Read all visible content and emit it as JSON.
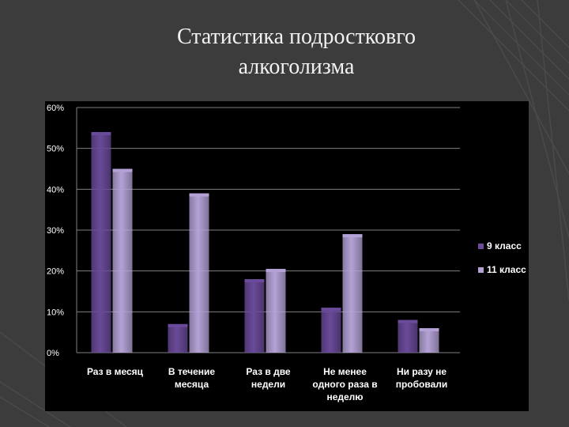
{
  "slide": {
    "title_line1": "Статистика подростковго",
    "title_line2": "алкоголизма"
  },
  "colors": {
    "background": "#3c3c3c",
    "panel": "#000000",
    "grid": "#808080",
    "series_9": "#6a4a9a",
    "series_11": "#b4a2d6"
  },
  "chart_data": {
    "type": "bar",
    "title": "",
    "xlabel": "",
    "ylabel": "",
    "ylim": [
      0,
      0.6
    ],
    "y_ticks": [
      "0%",
      "10%",
      "20%",
      "30%",
      "40%",
      "50%",
      "60%"
    ],
    "grid": true,
    "legend_position": "right",
    "categories": [
      [
        "Раз в месяц"
      ],
      [
        "В течение",
        "месяца"
      ],
      [
        "Раз в две",
        "недели"
      ],
      [
        "Не менее",
        "одного раза в",
        "неделю"
      ],
      [
        "Ни разу не",
        "пробовали"
      ]
    ],
    "series": [
      {
        "name": "9 класс",
        "values": [
          0.54,
          0.07,
          0.18,
          0.11,
          0.08
        ]
      },
      {
        "name": "11 класс",
        "values": [
          0.45,
          0.39,
          0.205,
          0.29,
          0.06
        ]
      }
    ]
  }
}
